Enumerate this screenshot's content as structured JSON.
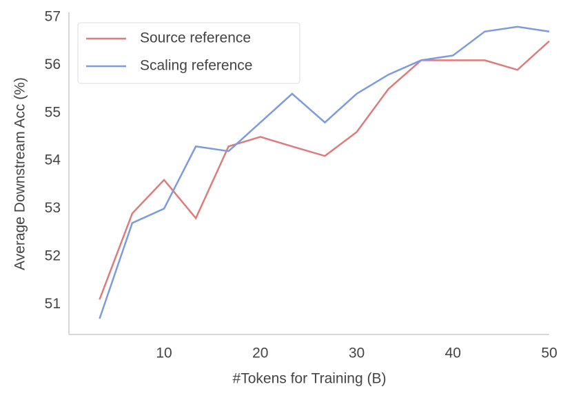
{
  "chart_data": {
    "type": "line",
    "x_label": "#Tokens for Training (B)",
    "y_label": "Average Downstream Acc (%)",
    "x": [
      3.3,
      6.7,
      10,
      13.3,
      16.7,
      20,
      23.3,
      26.7,
      30,
      33.3,
      36.7,
      40,
      43.3,
      46.7,
      50
    ],
    "series": [
      {
        "name": "Source reference",
        "color": "#dd7b7b",
        "values": [
          51.1,
          52.9,
          53.6,
          52.8,
          54.3,
          54.5,
          54.3,
          54.1,
          54.6,
          55.5,
          56.1,
          56.1,
          56.1,
          55.9,
          56.5
        ]
      },
      {
        "name": "Scaling reference",
        "color": "#7b9ae0",
        "values": [
          50.7,
          52.7,
          53.0,
          54.3,
          54.2,
          54.8,
          55.4,
          54.8,
          55.4,
          55.8,
          56.1,
          56.2,
          56.7,
          56.8,
          56.7
        ]
      }
    ],
    "xlim": [
      0.12,
      50
    ],
    "xticks": [
      10,
      20,
      30,
      40,
      50
    ],
    "ylim": [
      50.37,
      57.1
    ],
    "yticks": [
      51,
      52,
      53,
      54,
      55,
      56,
      57
    ],
    "grid": false,
    "legend": "upper left"
  }
}
